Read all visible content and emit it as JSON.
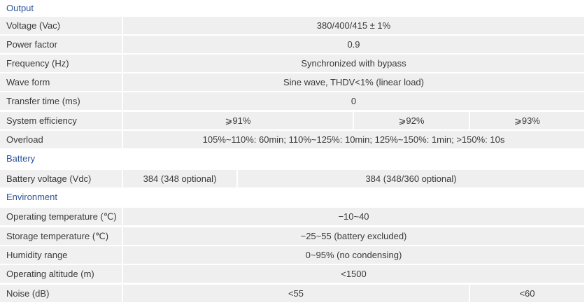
{
  "sections": {
    "output": "Output",
    "battery": "Battery",
    "environment": "Environment"
  },
  "rows": {
    "voltage": {
      "label": "Voltage (Vac)",
      "value": "380/400/415 ± 1%"
    },
    "power_factor": {
      "label": "Power factor",
      "value": "0.9"
    },
    "frequency": {
      "label": "Frequency (Hz)",
      "value": "Synchronized with bypass"
    },
    "wave_form": {
      "label": "Wave form",
      "value": "Sine wave, THDV<1% (linear load)"
    },
    "transfer_time": {
      "label": "Transfer time (ms)",
      "value": "0"
    },
    "system_efficiency": {
      "label": "System efficiency",
      "values": [
        "⩾91%",
        "⩾92%",
        "⩾93%"
      ]
    },
    "overload": {
      "label": "Overload",
      "value": "105%~110%: 60min; 110%~125%: 10min; 125%~150%: 1min; >150%: 10s"
    },
    "battery_voltage": {
      "label": "Battery voltage (Vdc)",
      "values": [
        "384 (348 optional)",
        "384 (348/360 optional)"
      ]
    },
    "operating_temperature": {
      "label": "Operating temperature (℃)",
      "value": "−10~40"
    },
    "storage_temperature": {
      "label": "Storage temperature (℃)",
      "value": "−25~55 (battery excluded)"
    },
    "humidity_range": {
      "label": "Humidity range",
      "value": "0~95% (no condensing)"
    },
    "operating_altitude": {
      "label": "Operating altitude (m)",
      "value": "<1500"
    },
    "noise": {
      "label": "Noise (dB)",
      "values": [
        "<55",
        "<60"
      ]
    }
  }
}
